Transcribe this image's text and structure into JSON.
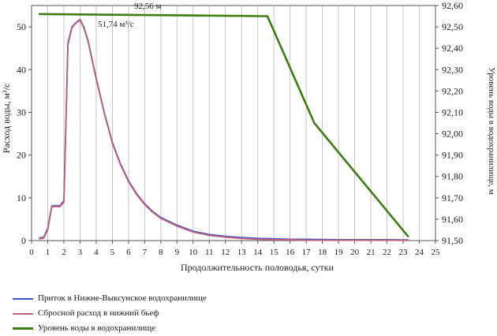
{
  "chart_data": {
    "type": "line",
    "xlabel": "Продолжительность половодья, сутки",
    "ylabel_left": "Расход воды, м³/с",
    "ylabel_right": "Уровень воды в водохранилище, м",
    "xlim": [
      0,
      25
    ],
    "x_ticks": [
      0,
      1,
      2,
      3,
      4,
      5,
      6,
      7,
      8,
      9,
      10,
      11,
      12,
      13,
      14,
      15,
      16,
      17,
      18,
      19,
      20,
      21,
      22,
      23,
      24,
      25
    ],
    "ylim_left": [
      0,
      55
    ],
    "y_ticks_left": [
      0,
      10,
      20,
      30,
      40,
      50
    ],
    "ylim_right": [
      91.5,
      92.6
    ],
    "y_ticks_right": [
      91.5,
      91.6,
      91.7,
      91.8,
      91.9,
      92.0,
      92.1,
      92.2,
      92.3,
      92.4,
      92.5,
      92.6
    ],
    "y_ticks_right_labels": [
      "91,50",
      "91,60",
      "91,70",
      "91,80",
      "91,90",
      "92,00",
      "92,10",
      "92,20",
      "92,30",
      "92,40",
      "92,50",
      "92,60"
    ],
    "grid": "vertical",
    "legend_position": "bottom-left",
    "annotations": {
      "peak_flow": "51,74 м³/с",
      "max_level": "92,56 м"
    },
    "series": [
      {
        "name": "Приток в Нижне-Выксунское водохранилище",
        "axis": "left",
        "color": "#3b56c4",
        "x": [
          0.5,
          0.75,
          1,
          1.25,
          1.5,
          1.75,
          2,
          2.25,
          2.5,
          2.75,
          3,
          3.25,
          3.5,
          4,
          4.5,
          5,
          5.5,
          6,
          6.5,
          7,
          7.5,
          8,
          9,
          10,
          11,
          12,
          13,
          14,
          15,
          16,
          17,
          18,
          19,
          20,
          21,
          22,
          23,
          23.3
        ],
        "y": [
          0.6,
          0.8,
          2.8,
          8.1,
          8.2,
          8.1,
          9.3,
          46.2,
          50.0,
          51.0,
          51.74,
          49.8,
          46.7,
          38.0,
          30.0,
          23.0,
          18.0,
          14.0,
          11.0,
          8.6,
          6.8,
          5.4,
          3.6,
          2.2,
          1.4,
          1.0,
          0.7,
          0.5,
          0.4,
          0.3,
          0.3,
          0.25,
          0.2,
          0.2,
          0.2,
          0.2,
          0.15,
          0.15
        ]
      },
      {
        "name": "Сбросной расход в нижний бьеф",
        "axis": "left",
        "color": "#c2607c",
        "x": [
          0.5,
          0.75,
          1,
          1.25,
          1.5,
          1.75,
          2,
          2.25,
          2.5,
          2.75,
          3,
          3.25,
          3.5,
          4,
          4.5,
          5,
          5.5,
          6,
          6.5,
          7,
          7.5,
          8,
          9,
          10,
          11,
          12,
          13,
          14,
          15,
          16,
          17,
          18,
          19,
          20,
          21,
          22,
          23,
          23.3
        ],
        "y": [
          0.4,
          0.6,
          2.5,
          7.9,
          8.0,
          7.9,
          9.0,
          45.8,
          49.8,
          50.9,
          51.6,
          49.6,
          46.5,
          37.8,
          29.8,
          22.8,
          17.8,
          13.8,
          10.8,
          8.4,
          6.6,
          5.2,
          3.4,
          2.0,
          1.2,
          0.8,
          0.5,
          0.3,
          0.2,
          0.2,
          0.1,
          0.1,
          0.1,
          0.1,
          0.1,
          0.1,
          0.05,
          0.05
        ]
      },
      {
        "name": "Уровень воды в водохранилище",
        "axis": "right",
        "color": "#3f7d12",
        "x": [
          0.5,
          14.6,
          17.5,
          23.3
        ],
        "y": [
          92.56,
          92.55,
          92.05,
          91.52
        ]
      }
    ]
  }
}
